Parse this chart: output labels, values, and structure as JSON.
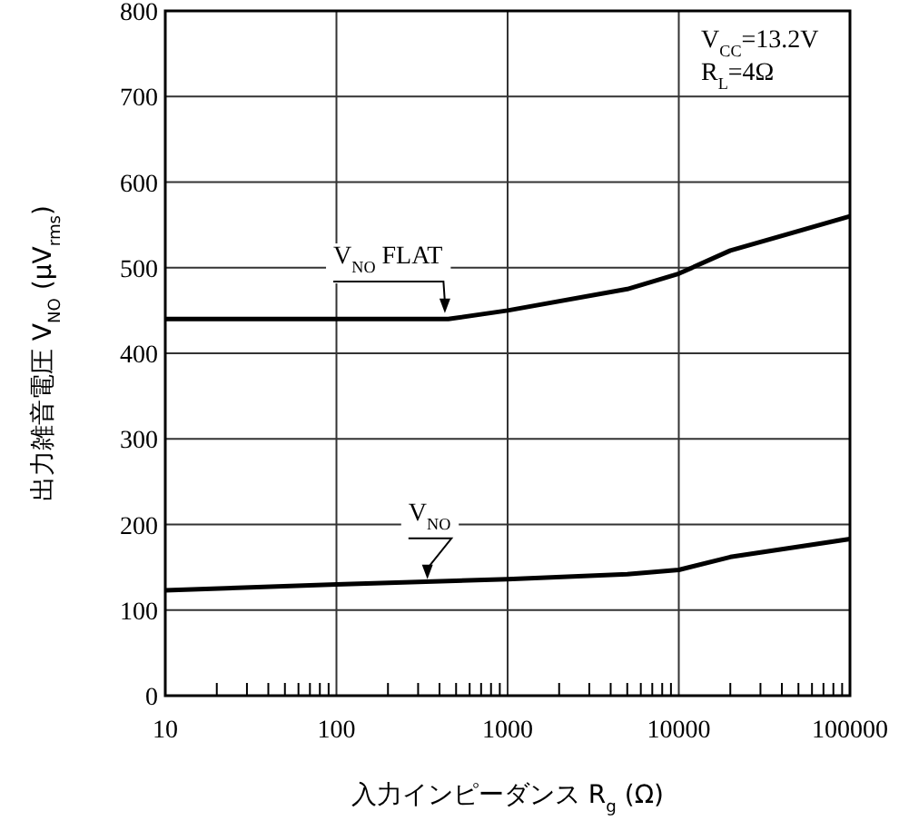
{
  "chart_data": {
    "type": "line",
    "xlabel": "入力インピーダンス R$_{g}$ (Ω)",
    "ylabel": "出力雑音電圧 V$_{NO}$ (μV$_{rms}$)",
    "annotations": [
      "V$_{CC}$=13.2V",
      "R$_{L}$=4Ω"
    ],
    "series": [
      {
        "name": "V$_{NO}$ FLAT",
        "color": "#000000",
        "x": [
          10,
          100,
          450,
          1000,
          5000,
          10000,
          20000,
          100000
        ],
        "values": [
          440,
          440,
          440,
          450,
          475,
          493,
          520,
          560
        ]
      },
      {
        "name": "V$_{NO}$",
        "color": "#000000",
        "x": [
          10,
          100,
          1000,
          5000,
          10000,
          20000,
          100000
        ],
        "values": [
          123,
          130,
          136,
          142,
          147,
          162,
          183
        ]
      }
    ],
    "log": "x",
    "grid": true,
    "legend": false,
    "line_style": "solid",
    "marker": "none",
    "xlim": [
      10,
      100000
    ],
    "ylim": [
      0,
      800
    ],
    "xticks": [
      10,
      100,
      1000,
      10000,
      100000
    ],
    "yticks": [
      0,
      100,
      200,
      300,
      400,
      500,
      600,
      700,
      800
    ]
  }
}
